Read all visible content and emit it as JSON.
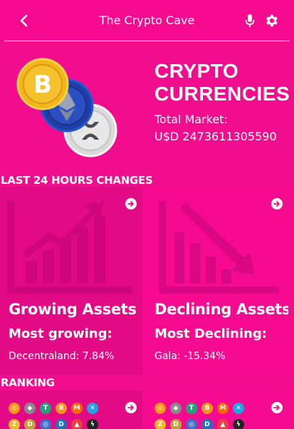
{
  "header": {
    "back_icon": "chevron-left-icon",
    "title": "The Crypto Cave",
    "mic_icon": "microphone-icon",
    "settings_icon": "gear-icon"
  },
  "hero": {
    "title": "CRYPTO CURRENCIES",
    "market_label": "Total Market:",
    "market_value": "U$D 2473611305590",
    "coin_icons": [
      "bitcoin-icon",
      "ethereum-icon",
      "xrp-icon"
    ]
  },
  "sections": {
    "changes_label": "LAST 24 HOURS CHANGES",
    "ranking_label": "RANKING"
  },
  "cards": {
    "growing": {
      "title": "Growing Assets",
      "subtitle": "Most growing:",
      "value": "Decentraland: 7.84%"
    },
    "declining": {
      "title": "Declining Assets",
      "subtitle": "Most Declining:",
      "value": "Gala: -15.34%"
    }
  },
  "colors": {
    "background": "#f20c8e",
    "card_dark": "#e30a85",
    "card_light": "#f50a90",
    "text": "#ffffff"
  }
}
